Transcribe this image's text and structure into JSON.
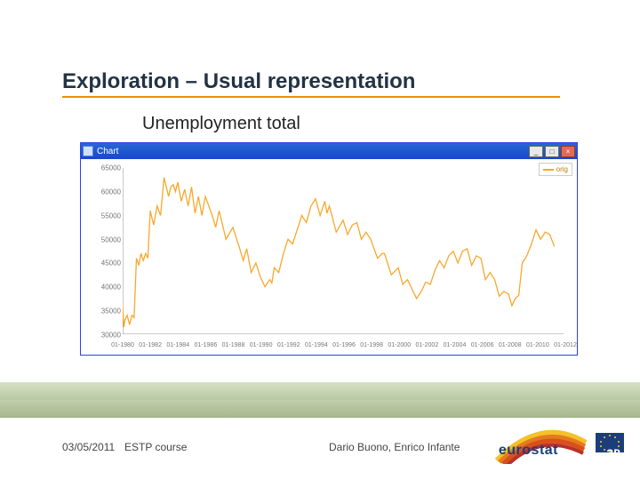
{
  "title": "Exploration – Usual representation",
  "subtitle": "Unemployment total",
  "title_color": "#223344",
  "underline_color": "#f28c00",
  "subtitle_color": "#222222",
  "window": {
    "title": "Chart",
    "legend_label": "orig"
  },
  "chart": {
    "type": "line",
    "line_color": "#f7a82b",
    "line_width": 1.3,
    "background_color": "#ffffff",
    "grid_color": "#d8d8d8",
    "axis_color": "#777777",
    "tick_font_size": 8,
    "ylim": [
      30000,
      65000
    ],
    "yticks": [
      30000,
      35000,
      40000,
      45000,
      50000,
      55000,
      60000,
      65000
    ],
    "ytick_labels": [
      "30000",
      "35000",
      "40000",
      "45000",
      "50000",
      "55000",
      "60000",
      "65000"
    ],
    "xlim": [
      1980.0,
      2012.0
    ],
    "xticks": [
      1980,
      1982,
      1984,
      1986,
      1988,
      1990,
      1992,
      1994,
      1996,
      1998,
      2000,
      2002,
      2004,
      2006,
      2008,
      2010,
      2012
    ],
    "xtick_labels": [
      "01-1980",
      "01-1982",
      "01-1984",
      "01-1986",
      "01-1988",
      "01-1990",
      "01-1992",
      "01-1994",
      "01-1996",
      "01-1998",
      "01-2000",
      "01-2002",
      "01-2004",
      "01-2006",
      "01-2008",
      "01-2010",
      "01-2012"
    ],
    "series": [
      [
        1980.0,
        36000
      ],
      [
        1980.08,
        31500
      ],
      [
        1980.17,
        33000
      ],
      [
        1980.33,
        34000
      ],
      [
        1980.5,
        32000
      ],
      [
        1980.67,
        34000
      ],
      [
        1980.83,
        33500
      ],
      [
        1981.0,
        46000
      ],
      [
        1981.17,
        44500
      ],
      [
        1981.33,
        47000
      ],
      [
        1981.5,
        45500
      ],
      [
        1981.67,
        47000
      ],
      [
        1981.83,
        46000
      ],
      [
        1982.0,
        56000
      ],
      [
        1982.25,
        53000
      ],
      [
        1982.5,
        57000
      ],
      [
        1982.75,
        55000
      ],
      [
        1983.0,
        63000
      ],
      [
        1983.33,
        59000
      ],
      [
        1983.5,
        61000
      ],
      [
        1983.67,
        61500
      ],
      [
        1983.83,
        60000
      ],
      [
        1984.0,
        62000
      ],
      [
        1984.25,
        58000
      ],
      [
        1984.5,
        60500
      ],
      [
        1984.75,
        57000
      ],
      [
        1985.0,
        61000
      ],
      [
        1985.25,
        55500
      ],
      [
        1985.5,
        59000
      ],
      [
        1985.75,
        55000
      ],
      [
        1986.0,
        59000
      ],
      [
        1986.5,
        55000
      ],
      [
        1986.75,
        52500
      ],
      [
        1987.0,
        56000
      ],
      [
        1987.5,
        50000
      ],
      [
        1988.0,
        52500
      ],
      [
        1988.5,
        48000
      ],
      [
        1988.75,
        45500
      ],
      [
        1989.0,
        48000
      ],
      [
        1989.33,
        43000
      ],
      [
        1989.67,
        45000
      ],
      [
        1990.0,
        42000
      ],
      [
        1990.33,
        40000
      ],
      [
        1990.67,
        41500
      ],
      [
        1990.83,
        40800
      ],
      [
        1991.0,
        44000
      ],
      [
        1991.33,
        43000
      ],
      [
        1991.67,
        47000
      ],
      [
        1992.0,
        50000
      ],
      [
        1992.33,
        49000
      ],
      [
        1992.67,
        52000
      ],
      [
        1993.0,
        55000
      ],
      [
        1993.33,
        53500
      ],
      [
        1993.67,
        57000
      ],
      [
        1994.0,
        58500
      ],
      [
        1994.33,
        55000
      ],
      [
        1994.67,
        58000
      ],
      [
        1994.83,
        55500
      ],
      [
        1995.0,
        57000
      ],
      [
        1995.5,
        51500
      ],
      [
        1996.0,
        54000
      ],
      [
        1996.33,
        51000
      ],
      [
        1996.67,
        53000
      ],
      [
        1997.0,
        53500
      ],
      [
        1997.33,
        50000
      ],
      [
        1997.67,
        51500
      ],
      [
        1998.0,
        50000
      ],
      [
        1998.5,
        46000
      ],
      [
        1998.83,
        47000
      ],
      [
        1999.0,
        47000
      ],
      [
        1999.5,
        42500
      ],
      [
        2000.0,
        44000
      ],
      [
        2000.33,
        40500
      ],
      [
        2000.67,
        41500
      ],
      [
        2001.0,
        39500
      ],
      [
        2001.33,
        37500
      ],
      [
        2001.67,
        39000
      ],
      [
        2002.0,
        41000
      ],
      [
        2002.33,
        40500
      ],
      [
        2002.67,
        43500
      ],
      [
        2003.0,
        45500
      ],
      [
        2003.33,
        44000
      ],
      [
        2003.67,
        46500
      ],
      [
        2004.0,
        47500
      ],
      [
        2004.33,
        45000
      ],
      [
        2004.67,
        47500
      ],
      [
        2005.0,
        48000
      ],
      [
        2005.33,
        44500
      ],
      [
        2005.67,
        46500
      ],
      [
        2006.0,
        46000
      ],
      [
        2006.33,
        41500
      ],
      [
        2006.67,
        43000
      ],
      [
        2007.0,
        41500
      ],
      [
        2007.33,
        38000
      ],
      [
        2007.67,
        39000
      ],
      [
        2008.0,
        38500
      ],
      [
        2008.25,
        36000
      ],
      [
        2008.5,
        37500
      ],
      [
        2008.75,
        38200
      ],
      [
        2009.0,
        45000
      ],
      [
        2009.33,
        46500
      ],
      [
        2009.67,
        49000
      ],
      [
        2010.0,
        52000
      ],
      [
        2010.33,
        50000
      ],
      [
        2010.67,
        51500
      ],
      [
        2011.0,
        51000
      ],
      [
        2011.33,
        48500
      ]
    ]
  },
  "footer": {
    "date": "03/05/2011",
    "course": "ESTP course",
    "authors": "Dario Buono, Enrico Infante",
    "page": "38"
  },
  "logo": {
    "text": "eurostat",
    "arc_colors": [
      "#f5c02a",
      "#e37b1e",
      "#d9501b",
      "#b7322a"
    ]
  }
}
